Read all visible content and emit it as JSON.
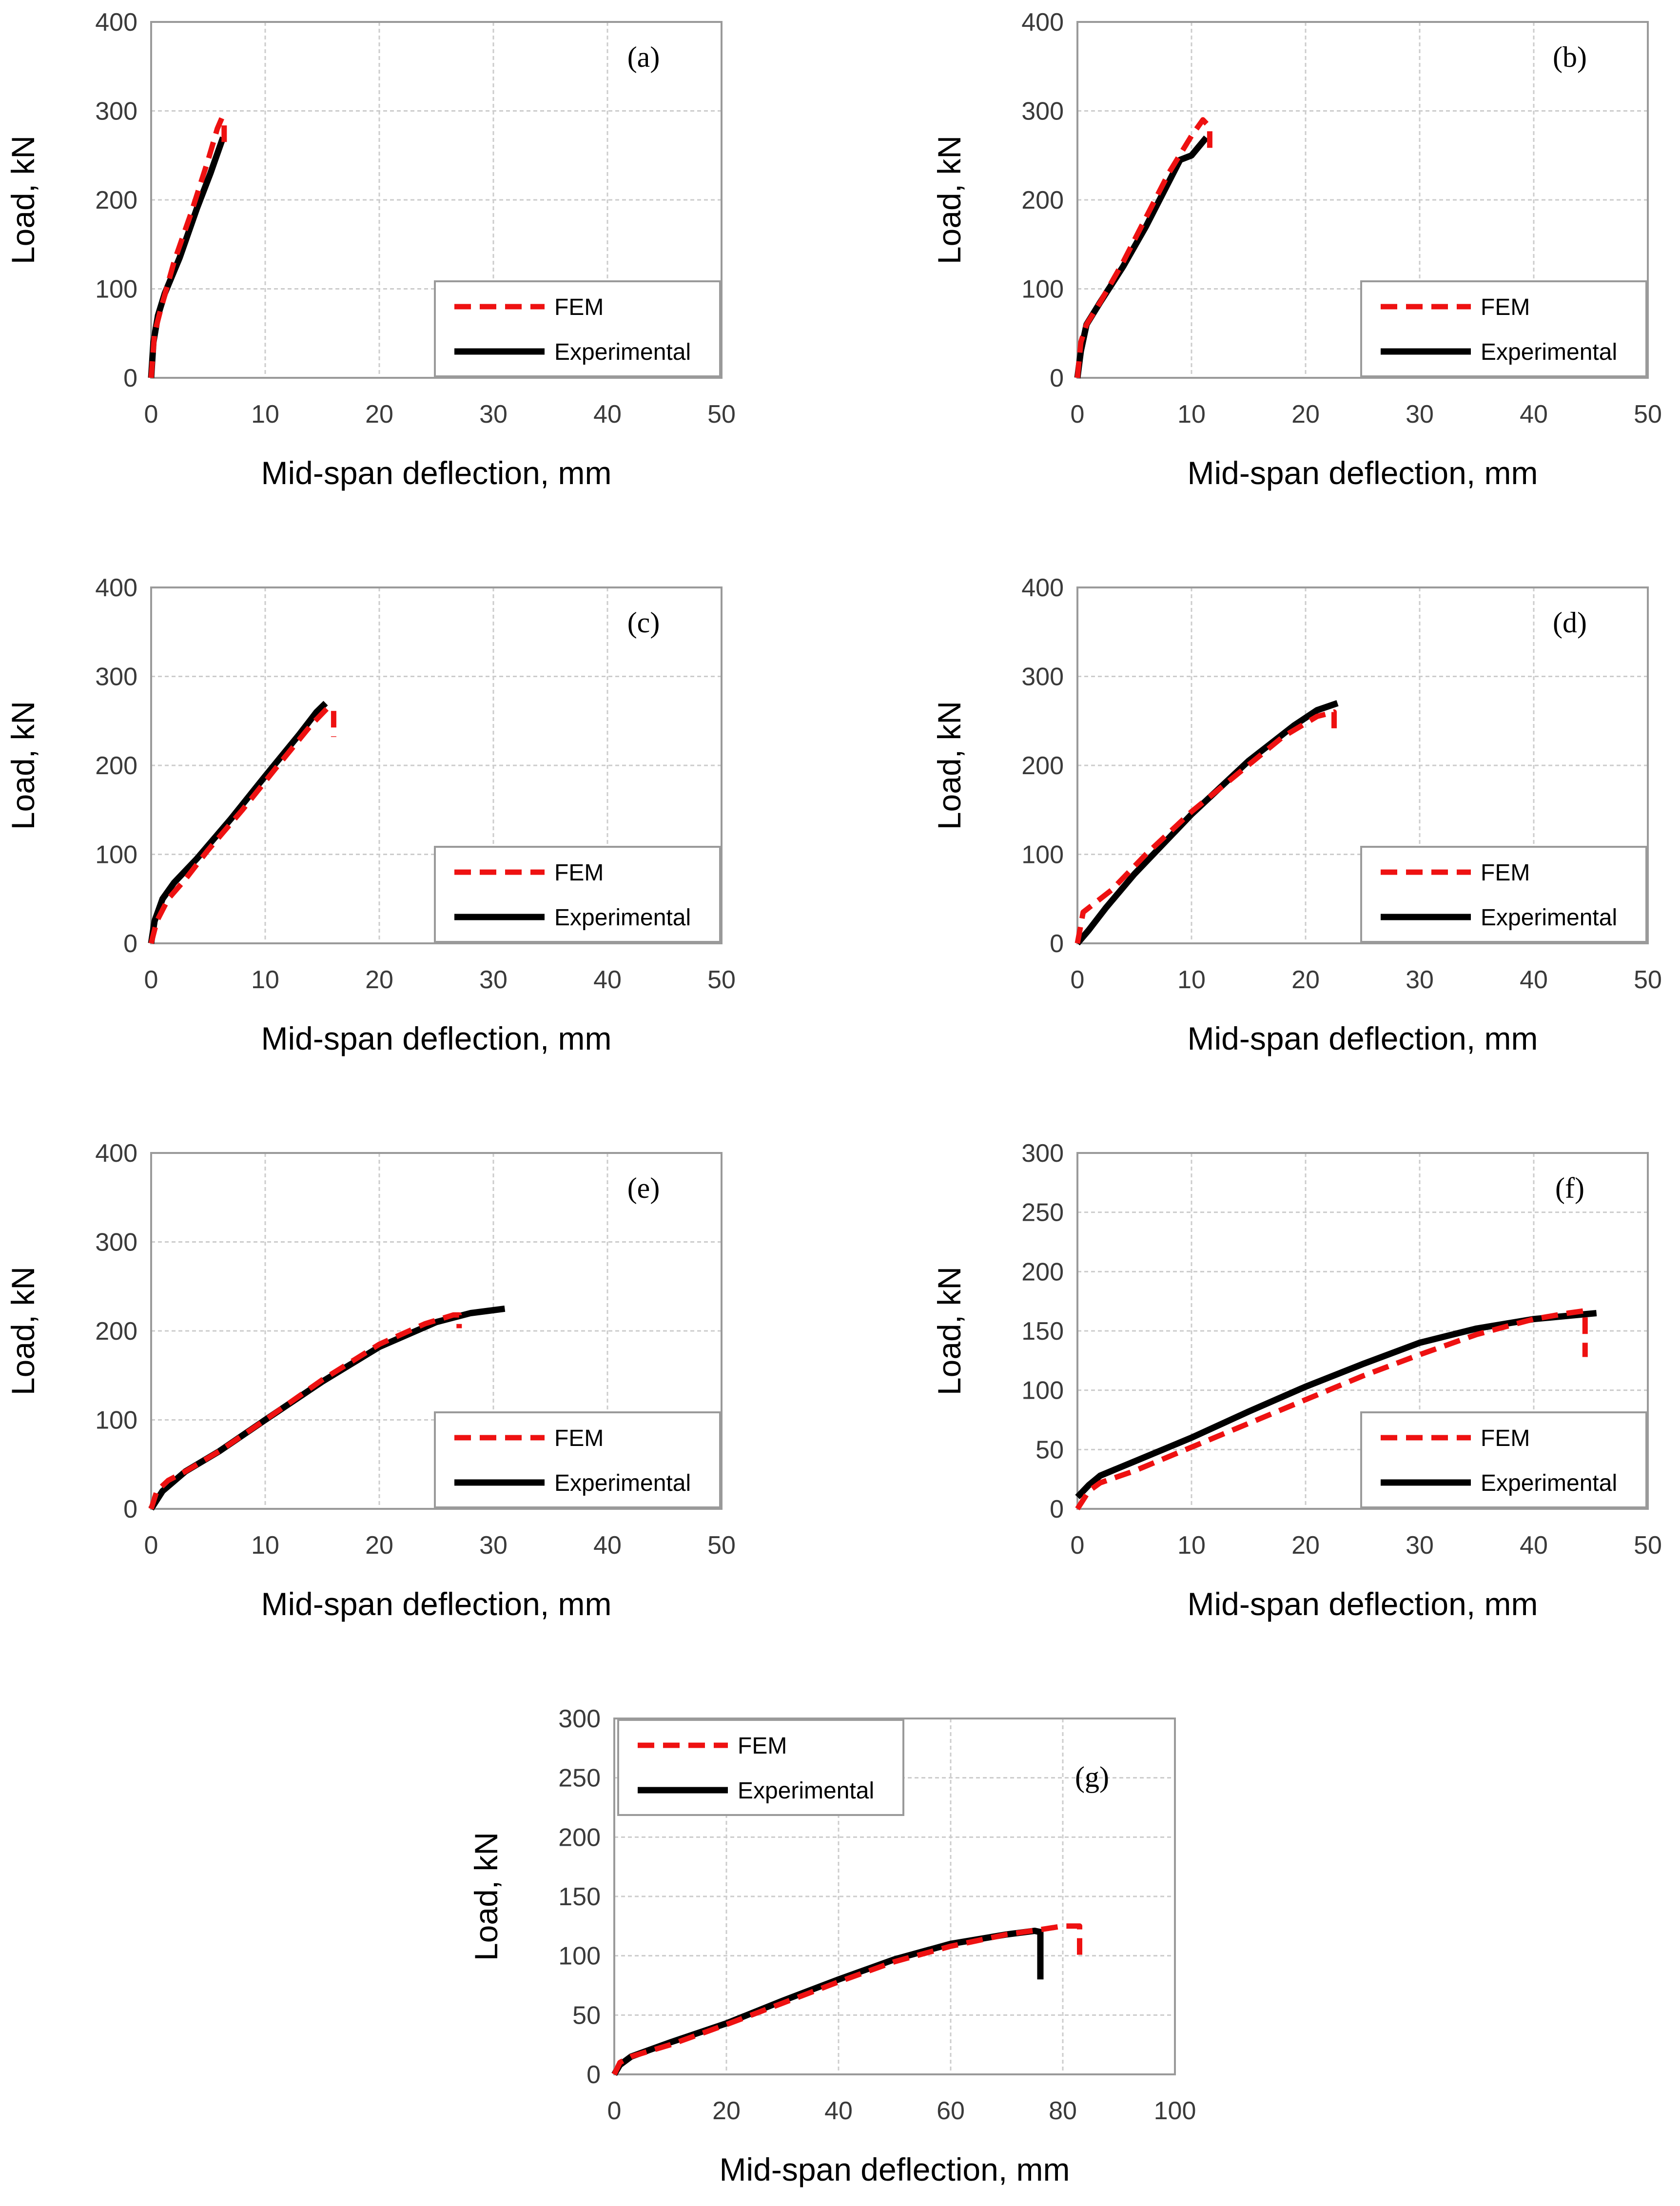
{
  "colors": {
    "fem": "#ee1111",
    "experimental": "#000000",
    "grid": "#cccccc",
    "axis": "#9a9a9a"
  },
  "chart_data": [
    {
      "type": "line",
      "panel": "(a)",
      "xlabel": "Mid-span deflection, mm",
      "ylabel": "Load, kN",
      "xlim": [
        0,
        50
      ],
      "ylim": [
        0,
        400
      ],
      "xticks": [
        0,
        10,
        20,
        30,
        40,
        50
      ],
      "yticks": [
        0,
        100,
        200,
        300,
        400
      ],
      "legend": {
        "position": "bottom-right",
        "entries": [
          "FEM",
          "Experimental"
        ]
      },
      "series": [
        {
          "name": "FEM",
          "style": "dashed",
          "x": [
            0,
            0.3,
            0.8,
            2,
            3.5,
            5,
            5.8,
            6.2,
            6.4,
            6.4
          ],
          "y": [
            0,
            50,
            75,
            130,
            185,
            245,
            280,
            292,
            290,
            262
          ]
        },
        {
          "name": "Experimental",
          "style": "solid",
          "x": [
            0,
            0.2,
            0.6,
            1.2,
            2.5,
            4,
            5.2,
            6.3
          ],
          "y": [
            0,
            40,
            70,
            95,
            135,
            190,
            230,
            270
          ]
        }
      ]
    },
    {
      "type": "line",
      "panel": "(b)",
      "xlabel": "Mid-span deflection, mm",
      "ylabel": "Load, kN",
      "xlim": [
        0,
        50
      ],
      "ylim": [
        0,
        400
      ],
      "xticks": [
        0,
        10,
        20,
        30,
        40,
        50
      ],
      "yticks": [
        0,
        100,
        200,
        300,
        400
      ],
      "legend": {
        "position": "bottom-right",
        "entries": [
          "FEM",
          "Experimental"
        ]
      },
      "series": [
        {
          "name": "FEM",
          "style": "dashed",
          "x": [
            0,
            0.3,
            0.8,
            2,
            4,
            6,
            8,
            10,
            11,
            11.6,
            11.6
          ],
          "y": [
            0,
            40,
            60,
            85,
            130,
            180,
            230,
            272,
            290,
            282,
            258
          ]
        },
        {
          "name": "Experimental",
          "style": "solid",
          "x": [
            0,
            0.3,
            0.8,
            2,
            4,
            6,
            8,
            9,
            10,
            11.3
          ],
          "y": [
            0,
            30,
            60,
            85,
            125,
            170,
            220,
            245,
            250,
            270
          ]
        }
      ]
    },
    {
      "type": "line",
      "panel": "(c)",
      "xlabel": "Mid-span deflection, mm",
      "ylabel": "Load, kN",
      "xlim": [
        0,
        50
      ],
      "ylim": [
        0,
        400
      ],
      "xticks": [
        0,
        10,
        20,
        30,
        40,
        50
      ],
      "yticks": [
        0,
        100,
        200,
        300,
        400
      ],
      "legend": {
        "position": "bottom-right",
        "entries": [
          "FEM",
          "Experimental"
        ]
      },
      "series": [
        {
          "name": "FEM",
          "style": "dashed",
          "x": [
            0,
            0.5,
            1.5,
            3,
            5,
            8,
            11,
            14,
            15.5,
            16,
            16
          ],
          "y": [
            0,
            25,
            50,
            72,
            105,
            150,
            198,
            245,
            265,
            262,
            232
          ]
        },
        {
          "name": "Experimental",
          "style": "solid",
          "x": [
            0,
            0.3,
            1,
            2,
            4,
            7,
            10,
            13,
            14.5,
            15.3
          ],
          "y": [
            0,
            25,
            50,
            68,
            95,
            140,
            188,
            235,
            260,
            270
          ]
        }
      ]
    },
    {
      "type": "line",
      "panel": "(d)",
      "xlabel": "Mid-span deflection, mm",
      "ylabel": "Load, kN",
      "xlim": [
        0,
        50
      ],
      "ylim": [
        0,
        400
      ],
      "xticks": [
        0,
        10,
        20,
        30,
        40,
        50
      ],
      "yticks": [
        0,
        100,
        200,
        300,
        400
      ],
      "legend": {
        "position": "bottom-right",
        "entries": [
          "FEM",
          "Experimental"
        ]
      },
      "series": [
        {
          "name": "FEM",
          "style": "dashed",
          "x": [
            0,
            0.5,
            1.5,
            3,
            6,
            10,
            14,
            18,
            21,
            22.5,
            22.5
          ],
          "y": [
            0,
            35,
            45,
            60,
            100,
            148,
            190,
            232,
            255,
            260,
            232
          ]
        },
        {
          "name": "Experimental",
          "style": "solid",
          "x": [
            0,
            1,
            2.5,
            5,
            10,
            15,
            19,
            21,
            22.8
          ],
          "y": [
            0,
            15,
            40,
            78,
            145,
            205,
            245,
            262,
            270
          ]
        }
      ]
    },
    {
      "type": "line",
      "panel": "(e)",
      "xlabel": "Mid-span deflection, mm",
      "ylabel": "Load, kN",
      "xlim": [
        0,
        50
      ],
      "ylim": [
        0,
        400
      ],
      "xticks": [
        0,
        10,
        20,
        30,
        40,
        50
      ],
      "yticks": [
        0,
        100,
        200,
        300,
        400
      ],
      "legend": {
        "position": "bottom-right",
        "entries": [
          "FEM",
          "Experimental"
        ]
      },
      "series": [
        {
          "name": "FEM",
          "style": "dashed",
          "x": [
            0,
            0.5,
            1.5,
            3,
            6,
            10,
            15,
            20,
            24,
            26.5,
            27,
            27
          ],
          "y": [
            0,
            20,
            32,
            42,
            65,
            100,
            145,
            185,
            208,
            218,
            218,
            203
          ]
        },
        {
          "name": "Experimental",
          "style": "solid",
          "x": [
            0,
            1,
            3,
            6,
            10,
            15,
            20,
            25,
            28,
            31
          ],
          "y": [
            0,
            20,
            42,
            65,
            100,
            143,
            182,
            210,
            220,
            225
          ]
        }
      ]
    },
    {
      "type": "line",
      "panel": "(f)",
      "xlabel": "Mid-span deflection, mm",
      "ylabel": "Load, kN",
      "xlim": [
        0,
        50
      ],
      "ylim": [
        0,
        300
      ],
      "xticks": [
        0,
        10,
        20,
        30,
        40,
        50
      ],
      "yticks": [
        0,
        50,
        100,
        150,
        200,
        250,
        300
      ],
      "legend": {
        "position": "bottom-right",
        "entries": [
          "FEM",
          "Experimental"
        ]
      },
      "series": [
        {
          "name": "FEM",
          "style": "dashed",
          "x": [
            0,
            1,
            2,
            5,
            10,
            15,
            20,
            25,
            30,
            35,
            40,
            43,
            44.5,
            44.5
          ],
          "y": [
            0,
            15,
            22,
            32,
            52,
            72,
            92,
            112,
            130,
            147,
            160,
            165,
            167,
            128
          ]
        },
        {
          "name": "Experimental",
          "style": "solid",
          "x": [
            0,
            1,
            2,
            5,
            10,
            15,
            20,
            25,
            30,
            35,
            40,
            45.5
          ],
          "y": [
            10,
            20,
            28,
            40,
            60,
            82,
            103,
            122,
            140,
            152,
            160,
            165
          ]
        }
      ]
    },
    {
      "type": "line",
      "panel": "(g)",
      "xlabel": "Mid-span deflection, mm",
      "ylabel": "Load, kN",
      "xlim": [
        0,
        100
      ],
      "ylim": [
        0,
        300
      ],
      "xticks": [
        0,
        20,
        40,
        60,
        80,
        100
      ],
      "yticks": [
        0,
        50,
        100,
        150,
        200,
        250,
        300
      ],
      "legend": {
        "position": "top-left",
        "entries": [
          "FEM",
          "Experimental"
        ]
      },
      "series": [
        {
          "name": "FEM",
          "style": "dashed",
          "x": [
            0,
            1,
            3,
            10,
            20,
            30,
            40,
            50,
            60,
            70,
            76,
            80,
            83,
            83
          ],
          "y": [
            0,
            10,
            15,
            25,
            42,
            60,
            78,
            95,
            108,
            118,
            122,
            125,
            125,
            98
          ]
        },
        {
          "name": "Experimental",
          "style": "solid",
          "x": [
            0,
            1,
            3,
            10,
            20,
            30,
            40,
            50,
            60,
            70,
            75,
            76,
            76
          ],
          "y": [
            0,
            8,
            15,
            27,
            43,
            62,
            80,
            97,
            110,
            118,
            121,
            120,
            80
          ]
        }
      ]
    }
  ]
}
